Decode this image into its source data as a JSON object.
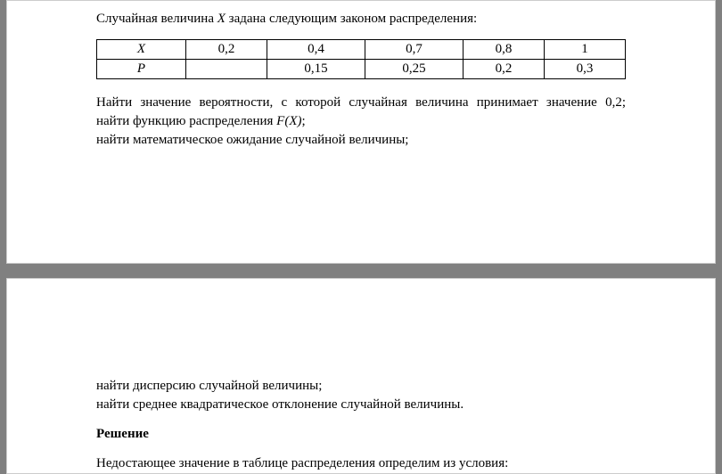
{
  "page1": {
    "intro_before": "Случайная величина ",
    "intro_var": "X",
    "intro_after": " задана следующим законом распределения:",
    "table": {
      "row_x_label": "X",
      "row_p_label": "P",
      "x_values": [
        "0,2",
        "0,4",
        "0,7",
        "0,8",
        "1"
      ],
      "p_values": [
        "",
        "0,15",
        "0,25",
        "0,2",
        "0,3"
      ]
    },
    "task1": "Найти значение вероятности, с которой случайная величина принимает значение 0,2;",
    "task2_before": "найти функцию распределения ",
    "task2_fx": "F(X)",
    "task2_after": ";",
    "task3": "найти математическое ожидание случайной величины;"
  },
  "page2": {
    "task4": "найти дисперсию случайной величины;",
    "task5": "найти среднее квадратическое отклонение случайной величины.",
    "solution_title": "Решение",
    "solution_text": "Недостающее значение в таблице распределения определим из условия:"
  },
  "style": {
    "background": "#808080",
    "page_bg": "#ffffff",
    "text_color": "#000000",
    "border_color": "#000000",
    "font_family": "Times New Roman",
    "font_size": 15
  }
}
